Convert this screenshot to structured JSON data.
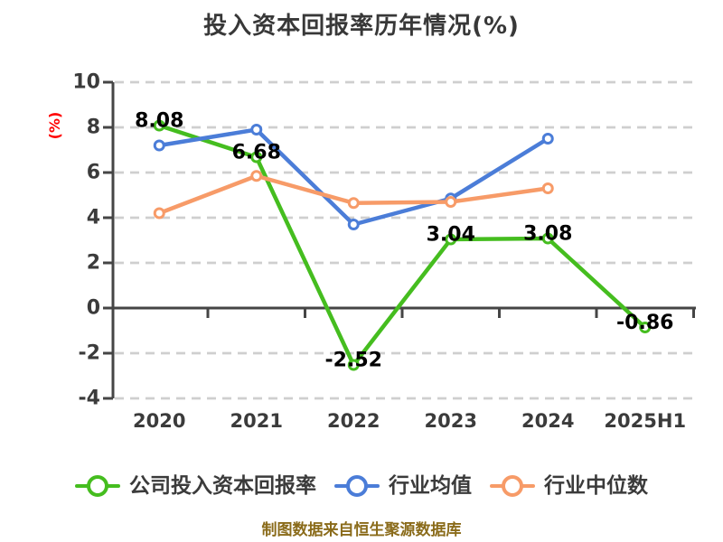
{
  "title": "投入资本回报率历年情况(%)",
  "y_axis_label": "(%)",
  "footer_note": "制图数据来自恒生聚源数据库",
  "colors": {
    "background": "#ffffff",
    "title_text": "#383838",
    "axis": "#454545",
    "grid": "#cfcfcf",
    "tick_label": "#3b3b3b",
    "y_axis_label": "#ff0000",
    "data_label": "#000000",
    "footer": "#8a6b1a",
    "marker_fill": "#ffffff",
    "series_company": "#45bd1f",
    "series_mean": "#4b7dd8",
    "series_median": "#f79b68"
  },
  "legend": {
    "items": [
      {
        "label": "公司投入资本回报率",
        "series_index": 0
      },
      {
        "label": "行业均值",
        "series_index": 1
      },
      {
        "label": "行业中位数",
        "series_index": 2
      }
    ]
  },
  "chart_data": {
    "type": "line",
    "title": "投入资本回报率历年情况(%)",
    "xlabel": "",
    "ylabel": "(%)",
    "categories": [
      "2020",
      "2021",
      "2022",
      "2023",
      "2024",
      "2025H1"
    ],
    "series": [
      {
        "name": "公司投入资本回报率",
        "color_key": "series_company",
        "values": [
          8.08,
          6.68,
          -2.52,
          3.04,
          3.08,
          -0.86
        ],
        "data_labels": [
          "8.08",
          "6.68",
          "-2.52",
          "3.04",
          "3.08",
          "-0.86"
        ],
        "show_labels": true
      },
      {
        "name": "行业均值",
        "color_key": "series_mean",
        "values": [
          7.2,
          7.9,
          3.7,
          4.85,
          7.5,
          null
        ],
        "show_labels": false
      },
      {
        "name": "行业中位数",
        "color_key": "series_median",
        "values": [
          4.2,
          5.85,
          4.65,
          4.7,
          5.3,
          null
        ],
        "show_labels": false
      }
    ],
    "yticks": [
      10,
      8,
      6,
      4,
      2,
      0,
      -2,
      -4
    ],
    "ylim": [
      -4,
      10
    ],
    "grid": "horizontal-dashed",
    "legend_position": "bottom"
  }
}
